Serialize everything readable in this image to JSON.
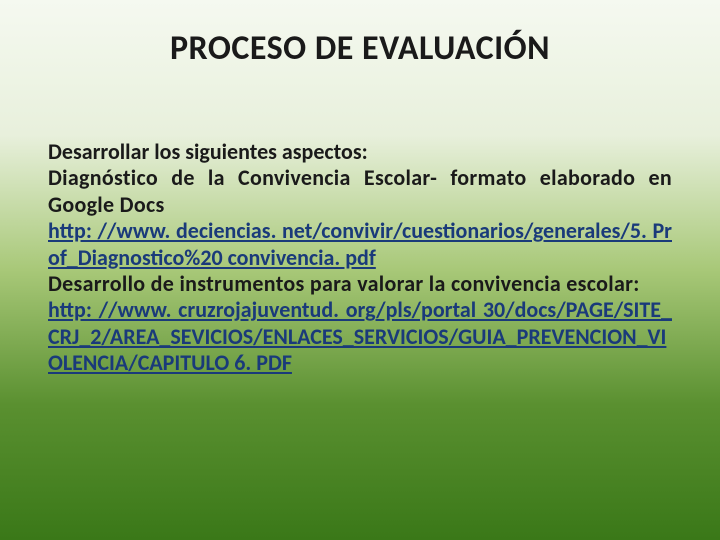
{
  "slide": {
    "title": "PROCESO DE EVALUACIÓN",
    "intro": "Desarrollar los siguientes aspectos:",
    "diag": "Diagnóstico de la Convivencia Escolar- formato elaborado en Google Docs",
    "link1": "http: //www. deciencias. net/convivir/cuestionarios/gen­erales/5. Prof_Diagnostico%20 convivencia. pdf",
    "instr": "Desarrollo de instrumentos para valorar la convivencia escolar:",
    "link2": "http: //www. cruzrojajuventud. org/pls/portal 30/docs/P­AGE/SITE_CRJ_2/AREA_SEVICIOS/ENLACES_SERVICIOS­/GUIA_PREVENCION_VIOLENCIA/CAPITULO 6. PDF"
  },
  "style": {
    "background_gradient": [
      "#f5f9f0",
      "#e8f0dc",
      "#a8c878",
      "#5a9030",
      "#3a7818"
    ],
    "title_fontsize": 34,
    "body_fontsize": 22,
    "body_weight": 700,
    "link_color": "#1a3a7a",
    "text_color": "#1a1a1a",
    "text_align": "justify"
  }
}
